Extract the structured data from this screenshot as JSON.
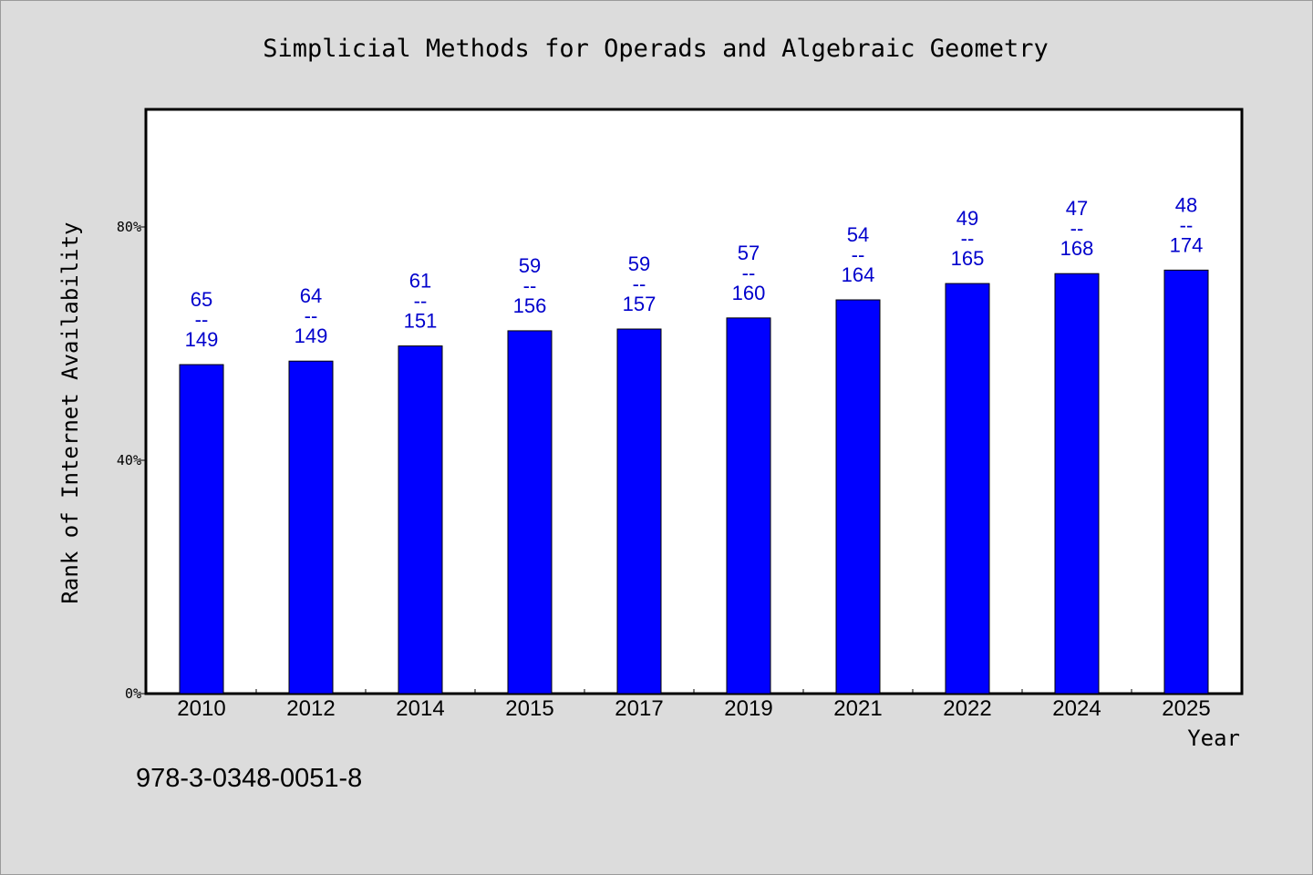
{
  "chart_data": {
    "type": "bar",
    "title": "Simplicial Methods for Operads and Algebraic Geometry",
    "xlabel": "Year",
    "ylabel": "Rank of Internet Availability",
    "categories": [
      "2010",
      "2012",
      "2014",
      "2015",
      "2017",
      "2019",
      "2021",
      "2022",
      "2024",
      "2025"
    ],
    "values": [
      56.4,
      57.0,
      59.6,
      62.2,
      62.5,
      64.4,
      67.5,
      70.3,
      72.0,
      72.6
    ],
    "bar_labels": [
      {
        "rank": "65",
        "sep": "--",
        "total": "149"
      },
      {
        "rank": "64",
        "sep": "--",
        "total": "149"
      },
      {
        "rank": "61",
        "sep": "--",
        "total": "151"
      },
      {
        "rank": "59",
        "sep": "--",
        "total": "156"
      },
      {
        "rank": "59",
        "sep": "--",
        "total": "157"
      },
      {
        "rank": "57",
        "sep": "--",
        "total": "160"
      },
      {
        "rank": "54",
        "sep": "--",
        "total": "164"
      },
      {
        "rank": "49",
        "sep": "--",
        "total": "165"
      },
      {
        "rank": "47",
        "sep": "--",
        "total": "168"
      },
      {
        "rank": "48",
        "sep": "--",
        "total": "174"
      }
    ],
    "ylim": [
      0,
      100
    ],
    "yticks": [
      0,
      40,
      80
    ],
    "ytick_labels": [
      "0%",
      "40%",
      "80%"
    ],
    "grid": false,
    "legend": "none",
    "colors": {
      "bar": "#0000ff",
      "bar_label": "#0000cc",
      "plot_background": "#ffffff",
      "page_background": "#dcdcdc"
    }
  },
  "footer": {
    "isbn": "978-3-0348-0051-8"
  }
}
